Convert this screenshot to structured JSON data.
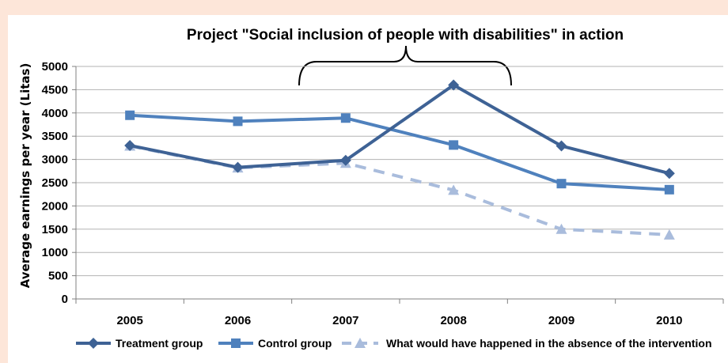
{
  "chart_data": {
    "type": "line",
    "title": "Project \"Social inclusion of people with disabilities\" in action",
    "ylabel": "Average earnings per year (Litas)",
    "xlabel": "",
    "x": [
      "2005",
      "2006",
      "2007",
      "2008",
      "2009",
      "2010"
    ],
    "yticks": [
      "0",
      "500",
      "1000",
      "1500",
      "2000",
      "2500",
      "3000",
      "3500",
      "4000",
      "4500",
      "5000"
    ],
    "ylim": [
      0,
      5000
    ],
    "grid": true,
    "legend": "bottom",
    "series": [
      {
        "name": "Treatment group",
        "values": [
          3300,
          2830,
          2980,
          4600,
          3290,
          2700
        ],
        "color": "#3e6295",
        "marker": "diamond",
        "dash": "solid"
      },
      {
        "name": "Control group",
        "values": [
          3950,
          3820,
          3890,
          3310,
          2480,
          2350
        ],
        "color": "#4f81bd",
        "marker": "square",
        "dash": "solid"
      },
      {
        "name": "What would have happened in the absence of the intervention",
        "values": [
          3290,
          2820,
          2920,
          2340,
          1500,
          1380
        ],
        "color": "#a9bcdc",
        "marker": "triangle",
        "dash": "dashed"
      }
    ]
  }
}
